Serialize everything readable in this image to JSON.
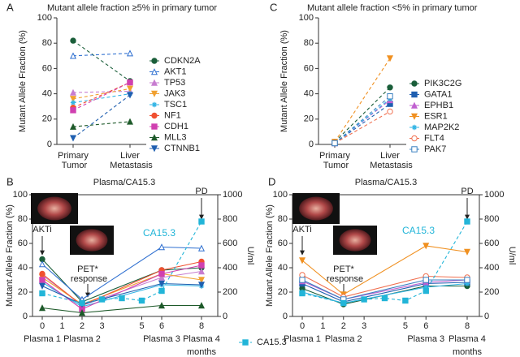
{
  "chart_data": [
    {
      "type": "line",
      "panel": "A",
      "title": "Mutant allele fraction ≥5% in primary tumor",
      "ylabel": "Mutant Allele Fraction (%)",
      "categories": [
        "Primary Tumor",
        "Liver Metastasis"
      ],
      "ylim": [
        0,
        100
      ],
      "yticks": [
        0,
        20,
        40,
        60,
        80,
        100
      ],
      "legend": "right",
      "dashed_lines": true,
      "series": [
        {
          "name": "CDKN2A",
          "color": "#1a5e3a",
          "marker": "circle",
          "values": [
            82,
            50
          ]
        },
        {
          "name": "AKT1",
          "color": "#2e6fd0",
          "marker": "triangle-open",
          "values": [
            70,
            72
          ]
        },
        {
          "name": "TP53",
          "color": "#c77dd0",
          "marker": "triangle",
          "values": [
            41,
            42
          ]
        },
        {
          "name": "JAK3",
          "color": "#f0a030",
          "marker": "triangle-down",
          "values": [
            36,
            44
          ]
        },
        {
          "name": "TSC1",
          "color": "#33b5e5",
          "marker": "star",
          "values": [
            33,
            40
          ]
        },
        {
          "name": "NF1",
          "color": "#f05030",
          "marker": "circle",
          "values": [
            29,
            49
          ]
        },
        {
          "name": "CDH1",
          "color": "#d040b0",
          "marker": "square",
          "values": [
            27,
            49
          ]
        },
        {
          "name": "MLL3",
          "color": "#1e5a2a",
          "marker": "triangle",
          "values": [
            14,
            18
          ]
        },
        {
          "name": "CTNNB1",
          "color": "#1f5fb0",
          "marker": "triangle-down",
          "values": [
            5,
            39
          ]
        }
      ]
    },
    {
      "type": "line",
      "panel": "B",
      "title": "Plasma/CA15.3",
      "ylabel": "Mutant Allele Fraction (%)",
      "y2label": "U/ml",
      "xlabel": "months",
      "x": [
        0,
        2,
        6,
        8
      ],
      "xlim": [
        0,
        8
      ],
      "xticks": [
        0,
        1,
        2,
        3,
        5,
        6,
        8
      ],
      "sample_labels": [
        "Plasma 1",
        "Plasma 2",
        "Plasma 3",
        "Plasma 4"
      ],
      "ylim": [
        0,
        100
      ],
      "yticks": [
        0,
        20,
        40,
        60,
        80,
        100
      ],
      "y2lim": [
        0,
        1000
      ],
      "y2ticks": [
        0,
        200,
        400,
        600,
        800,
        1000
      ],
      "therapy_label": "AKTi",
      "response_label": "PET* response",
      "progression_label": "PD",
      "legend": "bottom",
      "series": [
        {
          "color": "#1a5e3a",
          "marker": "circle",
          "values": [
            47,
            12,
            38,
            40
          ]
        },
        {
          "color": "#2e6fd0",
          "marker": "triangle-open",
          "values": [
            43,
            14,
            57,
            56
          ]
        },
        {
          "color": "#c77dd0",
          "marker": "triangle",
          "values": [
            34,
            9,
            32,
            37
          ]
        },
        {
          "color": "#f0a030",
          "marker": "triangle-down",
          "values": [
            32,
            10,
            35,
            30
          ]
        },
        {
          "color": "#33b5e5",
          "marker": "star",
          "values": [
            28,
            8,
            26,
            25
          ]
        },
        {
          "color": "#f05030",
          "marker": "circle",
          "values": [
            35,
            9,
            38,
            45
          ]
        },
        {
          "color": "#d040b0",
          "marker": "square",
          "values": [
            30,
            6,
            35,
            42
          ]
        },
        {
          "color": "#1e5a2a",
          "marker": "triangle",
          "values": [
            7,
            3,
            9,
            9
          ]
        },
        {
          "color": "#1f5fb0",
          "marker": "triangle-down",
          "values": [
            25,
            10,
            27,
            26
          ]
        },
        {
          "name": "CA15.3",
          "color": "#22b5d8",
          "marker": "square",
          "axis": "y2",
          "dashed": true,
          "x": [
            0,
            2,
            3,
            4,
            5,
            6,
            8
          ],
          "values": [
            190,
            110,
            140,
            150,
            130,
            210,
            780
          ]
        }
      ]
    },
    {
      "type": "line",
      "panel": "C",
      "title": "Mutant allele fraction <5% in primary tumor",
      "ylabel": "Mutant Allele Fraction (%)",
      "categories": [
        "Primary Tumor",
        "Liver Metastasis"
      ],
      "ylim": [
        0,
        100
      ],
      "yticks": [
        0,
        20,
        40,
        60,
        80,
        100
      ],
      "legend": "right",
      "dashed_lines": true,
      "series": [
        {
          "name": "PIK3C2G",
          "color": "#1a5e3a",
          "marker": "circle",
          "values": [
            2,
            45
          ]
        },
        {
          "name": "GATA1",
          "color": "#1f5fb0",
          "marker": "square",
          "values": [
            1,
            32
          ]
        },
        {
          "name": "EPHB1",
          "color": "#c060d0",
          "marker": "triangle",
          "values": [
            1,
            35
          ]
        },
        {
          "name": "ESR1",
          "color": "#f09020",
          "marker": "triangle-down",
          "values": [
            2,
            68
          ]
        },
        {
          "name": "MAP2K2",
          "color": "#33b5e5",
          "marker": "star",
          "values": [
            1,
            36
          ]
        },
        {
          "name": "FLT4",
          "color": "#f07050",
          "marker": "circle-open",
          "values": [
            1,
            26
          ]
        },
        {
          "name": "PAK7",
          "color": "#3a80c0",
          "marker": "square-open",
          "values": [
            1,
            38
          ]
        }
      ]
    },
    {
      "type": "line",
      "panel": "D",
      "title": "Plasma/CA15.3",
      "ylabel": "Mutant Allele Fraction (%)",
      "y2label": "U/ml",
      "xlabel": "months",
      "x": [
        0,
        2,
        6,
        8
      ],
      "xlim": [
        0,
        8
      ],
      "xticks": [
        0,
        1,
        2,
        3,
        5,
        6,
        8
      ],
      "sample_labels": [
        "Plasma 1",
        "Plasma 2",
        "Plasma 3",
        "Plasma 4"
      ],
      "ylim": [
        0,
        100
      ],
      "yticks": [
        0,
        20,
        40,
        60,
        80,
        100
      ],
      "y2lim": [
        0,
        1000
      ],
      "y2ticks": [
        0,
        200,
        400,
        600,
        800,
        1000
      ],
      "therapy_label": "AKTi",
      "response_label": "PET* response",
      "progression_label": "PD",
      "series": [
        {
          "color": "#1a5e3a",
          "marker": "circle",
          "values": [
            23,
            10,
            25,
            25
          ]
        },
        {
          "color": "#1f5fb0",
          "marker": "square",
          "values": [
            27,
            12,
            27,
            28
          ]
        },
        {
          "color": "#c060d0",
          "marker": "triangle",
          "values": [
            29,
            14,
            28,
            30
          ]
        },
        {
          "color": "#f09020",
          "marker": "triangle-down",
          "values": [
            46,
            18,
            58,
            53
          ]
        },
        {
          "color": "#33b5e5",
          "marker": "star",
          "values": [
            20,
            11,
            24,
            27
          ]
        },
        {
          "color": "#f07050",
          "marker": "circle-open",
          "values": [
            34,
            16,
            33,
            32
          ]
        },
        {
          "color": "#3a80c0",
          "marker": "square-open",
          "values": [
            30,
            14,
            30,
            30
          ]
        },
        {
          "name": "CA15.3",
          "color": "#22b5d8",
          "marker": "square",
          "axis": "y2",
          "dashed": true,
          "x": [
            0,
            2,
            3,
            4,
            5,
            6,
            8
          ],
          "values": [
            190,
            110,
            140,
            150,
            130,
            210,
            780
          ]
        }
      ]
    }
  ]
}
